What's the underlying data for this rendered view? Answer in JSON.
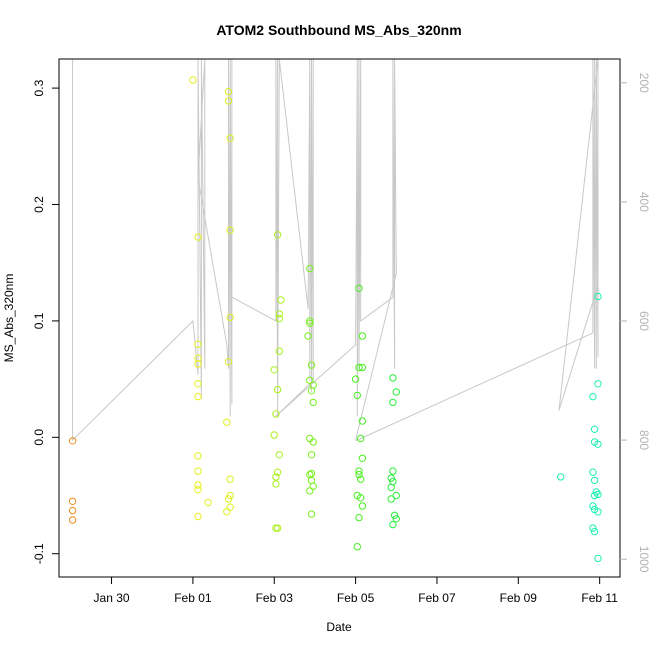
{
  "chart_data": {
    "type": "scatter",
    "title": "ATOM2 Southbound MS_Abs_320nm",
    "xlabel": "Date",
    "ylabel": "MS_Abs_320nm",
    "x_tick_labels": [
      "Jan 30",
      "Feb 01",
      "Feb 03",
      "Feb 05",
      "Feb 07",
      "Feb 09",
      "Feb 11"
    ],
    "x_tick_dates": [
      "2016-01-30",
      "2016-02-01",
      "2016-02-03",
      "2016-02-05",
      "2016-02-07",
      "2016-02-09",
      "2016-02-11"
    ],
    "xlim": [
      "2016-01-28 17:00",
      "2016-02-11 12:00"
    ],
    "ylim": [
      -0.12,
      0.325
    ],
    "y_ticks": [
      -0.1,
      0.0,
      0.1,
      0.2,
      0.3
    ],
    "y_tick_labels": [
      "-0.1",
      "0.0",
      "0.1",
      "0.2",
      "0.3"
    ],
    "y2_ticks": [
      200,
      400,
      600,
      800,
      1000
    ],
    "y2_tick_labels": [
      "200",
      "400",
      "600",
      "800",
      "1000"
    ],
    "y2lim": [
      1030,
      160
    ],
    "grid": false,
    "colors": {
      "points": "color gradient orange to green to cyan by date",
      "depth_line": "#c8c8c8"
    },
    "points": [
      [
        "2016-01-29 01:00",
        -0.003,
        "#f08c1e"
      ],
      [
        "2016-01-29 01:00",
        -0.055,
        "#f08c1e"
      ],
      [
        "2016-01-29 01:00",
        -0.063,
        "#f08c1e"
      ],
      [
        "2016-01-29 01:00",
        -0.071,
        "#f08c1e"
      ],
      [
        "2016-02-01 00:00",
        0.307,
        "#e6f01e"
      ],
      [
        "2016-02-01 03:00",
        0.172,
        "#e6f01e"
      ],
      [
        "2016-02-01 03:00",
        0.08,
        "#e6f01e"
      ],
      [
        "2016-02-01 03:00",
        0.068,
        "#e6f01e"
      ],
      [
        "2016-02-01 03:00",
        0.063,
        "#e6f01e"
      ],
      [
        "2016-02-01 03:00",
        0.046,
        "#e6f01e"
      ],
      [
        "2016-02-01 03:00",
        0.035,
        "#e6f01e"
      ],
      [
        "2016-02-01 03:00",
        -0.016,
        "#e6f01e"
      ],
      [
        "2016-02-01 03:00",
        -0.029,
        "#e6f01e"
      ],
      [
        "2016-02-01 03:00",
        -0.041,
        "#e6f01e"
      ],
      [
        "2016-02-01 03:00",
        -0.045,
        "#e6f01e"
      ],
      [
        "2016-02-01 03:00",
        -0.068,
        "#e6f01e"
      ],
      [
        "2016-02-01 09:00",
        -0.056,
        "#e6f01e"
      ],
      [
        "2016-02-01 21:00",
        0.297,
        "#ddf01e"
      ],
      [
        "2016-02-01 21:00",
        0.289,
        "#ddf01e"
      ],
      [
        "2016-02-01 22:00",
        0.257,
        "#ddf01e"
      ],
      [
        "2016-02-01 22:00",
        0.178,
        "#ddf01e"
      ],
      [
        "2016-02-01 22:00",
        0.103,
        "#ddf01e"
      ],
      [
        "2016-02-01 21:00",
        0.065,
        "#ddf01e"
      ],
      [
        "2016-02-01 20:00",
        0.013,
        "#ddf01e"
      ],
      [
        "2016-02-01 22:00",
        -0.036,
        "#ddf01e"
      ],
      [
        "2016-02-01 22:00",
        -0.05,
        "#ddf01e"
      ],
      [
        "2016-02-01 21:00",
        -0.053,
        "#ddf01e"
      ],
      [
        "2016-02-01 22:00",
        -0.06,
        "#ddf01e"
      ],
      [
        "2016-02-01 20:00",
        -0.064,
        "#ddf01e"
      ],
      [
        "2016-02-03 02:00",
        0.174,
        "#aaf01e"
      ],
      [
        "2016-02-03 04:00",
        0.118,
        "#aaf01e"
      ],
      [
        "2016-02-03 03:00",
        0.106,
        "#aaf01e"
      ],
      [
        "2016-02-03 03:00",
        0.102,
        "#aaf01e"
      ],
      [
        "2016-02-03 03:00",
        0.074,
        "#aaf01e"
      ],
      [
        "2016-02-03 00:00",
        0.058,
        "#aaf01e"
      ],
      [
        "2016-02-03 02:00",
        0.041,
        "#aaf01e"
      ],
      [
        "2016-02-03 01:00",
        0.02,
        "#aaf01e"
      ],
      [
        "2016-02-03 00:00",
        0.002,
        "#aaf01e"
      ],
      [
        "2016-02-03 03:00",
        -0.015,
        "#aaf01e"
      ],
      [
        "2016-02-03 02:00",
        -0.03,
        "#aaf01e"
      ],
      [
        "2016-02-03 01:00",
        -0.034,
        "#aaf01e"
      ],
      [
        "2016-02-03 01:00",
        -0.04,
        "#aaf01e"
      ],
      [
        "2016-02-03 01:00",
        -0.078,
        "#aaf01e"
      ],
      [
        "2016-02-03 02:00",
        -0.078,
        "#aaf01e"
      ],
      [
        "2016-02-03 21:00",
        0.145,
        "#7af01e"
      ],
      [
        "2016-02-03 21:00",
        0.1,
        "#7af01e"
      ],
      [
        "2016-02-03 21:00",
        0.098,
        "#7af01e"
      ],
      [
        "2016-02-03 20:00",
        0.087,
        "#7af01e"
      ],
      [
        "2016-02-03 22:00",
        0.062,
        "#7af01e"
      ],
      [
        "2016-02-03 21:00",
        0.049,
        "#7af01e"
      ],
      [
        "2016-02-03 23:00",
        0.045,
        "#7af01e"
      ],
      [
        "2016-02-03 22:00",
        0.04,
        "#7af01e"
      ],
      [
        "2016-02-03 23:00",
        0.03,
        "#7af01e"
      ],
      [
        "2016-02-03 21:00",
        -0.001,
        "#7af01e"
      ],
      [
        "2016-02-03 23:00",
        -0.004,
        "#7af01e"
      ],
      [
        "2016-02-03 22:00",
        -0.015,
        "#7af01e"
      ],
      [
        "2016-02-03 21:00",
        -0.032,
        "#7af01e"
      ],
      [
        "2016-02-03 22:00",
        -0.031,
        "#7af01e"
      ],
      [
        "2016-02-03 22:00",
        -0.037,
        "#7af01e"
      ],
      [
        "2016-02-03 23:00",
        -0.042,
        "#7af01e"
      ],
      [
        "2016-02-03 21:00",
        -0.046,
        "#7af01e"
      ],
      [
        "2016-02-03 22:00",
        -0.066,
        "#7af01e"
      ],
      [
        "2016-02-05 02:00",
        0.128,
        "#48f01e"
      ],
      [
        "2016-02-05 04:00",
        0.087,
        "#48f01e"
      ],
      [
        "2016-02-05 02:00",
        0.06,
        "#48f01e"
      ],
      [
        "2016-02-05 04:00",
        0.06,
        "#48f01e"
      ],
      [
        "2016-02-05 00:00",
        0.05,
        "#48f01e"
      ],
      [
        "2016-02-05 01:00",
        0.036,
        "#48f01e"
      ],
      [
        "2016-02-05 04:00",
        0.014,
        "#48f01e"
      ],
      [
        "2016-02-05 03:00",
        -0.001,
        "#48f01e"
      ],
      [
        "2016-02-05 04:00",
        -0.018,
        "#48f01e"
      ],
      [
        "2016-02-05 02:00",
        -0.029,
        "#48f01e"
      ],
      [
        "2016-02-05 02:00",
        -0.032,
        "#48f01e"
      ],
      [
        "2016-02-05 03:00",
        -0.036,
        "#48f01e"
      ],
      [
        "2016-02-05 01:00",
        -0.05,
        "#48f01e"
      ],
      [
        "2016-02-05 03:00",
        -0.052,
        "#48f01e"
      ],
      [
        "2016-02-05 04:00",
        -0.059,
        "#48f01e"
      ],
      [
        "2016-02-05 02:00",
        -0.069,
        "#48f01e"
      ],
      [
        "2016-02-05 01:00",
        -0.094,
        "#48f01e"
      ],
      [
        "2016-02-05 22:00",
        0.051,
        "#2af03c"
      ],
      [
        "2016-02-06 00:00",
        0.039,
        "#2af03c"
      ],
      [
        "2016-02-05 22:00",
        0.03,
        "#2af03c"
      ],
      [
        "2016-02-05 22:00",
        -0.029,
        "#2af03c"
      ],
      [
        "2016-02-05 21:00",
        -0.035,
        "#2af03c"
      ],
      [
        "2016-02-05 22:00",
        -0.038,
        "#2af03c"
      ],
      [
        "2016-02-05 21:00",
        -0.043,
        "#2af03c"
      ],
      [
        "2016-02-06 00:00",
        -0.05,
        "#2af03c"
      ],
      [
        "2016-02-05 21:00",
        -0.053,
        "#2af03c"
      ],
      [
        "2016-02-05 23:00",
        -0.067,
        "#2af03c"
      ],
      [
        "2016-02-06 00:00",
        -0.07,
        "#2af03c"
      ],
      [
        "2016-02-05 22:00",
        -0.075,
        "#2af03c"
      ],
      [
        "2016-02-10 01:00",
        -0.034,
        "#1ef0a0"
      ],
      [
        "2016-02-10 23:00",
        0.121,
        "#1ef0b4"
      ],
      [
        "2016-02-10 23:00",
        0.046,
        "#1ef0b4"
      ],
      [
        "2016-02-10 20:00",
        0.035,
        "#1ef0b4"
      ],
      [
        "2016-02-10 21:00",
        0.007,
        "#1ef0b4"
      ],
      [
        "2016-02-10 21:00",
        -0.004,
        "#1ef0b4"
      ],
      [
        "2016-02-10 23:00",
        -0.006,
        "#1ef0b4"
      ],
      [
        "2016-02-10 20:00",
        -0.03,
        "#1ef0b4"
      ],
      [
        "2016-02-10 21:00",
        -0.037,
        "#1ef0b4"
      ],
      [
        "2016-02-10 22:00",
        -0.047,
        "#1ef0b4"
      ],
      [
        "2016-02-10 23:00",
        -0.049,
        "#1ef0b4"
      ],
      [
        "2016-02-10 21:00",
        -0.05,
        "#1ef0b4"
      ],
      [
        "2016-02-10 20:00",
        -0.059,
        "#1ef0b4"
      ],
      [
        "2016-02-10 21:00",
        -0.062,
        "#1ef0b4"
      ],
      [
        "2016-02-10 23:00",
        -0.064,
        "#1ef0b4"
      ],
      [
        "2016-02-10 20:00",
        -0.078,
        "#1ef0b4"
      ],
      [
        "2016-02-10 21:00",
        -0.081,
        "#1ef0b4"
      ],
      [
        "2016-02-10 23:00",
        -0.104,
        "#1ef0b4"
      ]
    ],
    "depth_series": {
      "axis": "right",
      "color": "#c8c8c8",
      "points": [
        [
          "2016-01-29 01:00",
          160
        ],
        [
          "2016-01-29 01:00",
          800
        ],
        [
          "2016-02-01 00:00",
          600
        ],
        [
          "2016-02-01 03:00",
          690
        ],
        [
          "2016-02-01 03:00",
          160
        ],
        [
          "2016-02-01 05:00",
          730
        ],
        [
          "2016-02-01 05:00",
          160
        ],
        [
          "2016-02-01 07:00",
          680
        ],
        [
          "2016-02-01 07:00",
          160
        ],
        [
          "2016-02-01 03:00",
          360
        ],
        [
          "2016-02-01 20:00",
          640
        ],
        [
          "2016-02-01 21:00",
          680
        ],
        [
          "2016-02-01 21:00",
          160
        ],
        [
          "2016-02-01 22:00",
          760
        ],
        [
          "2016-02-01 22:00",
          160
        ],
        [
          "2016-02-01 23:00",
          740
        ],
        [
          "2016-02-01 23:00",
          160
        ],
        [
          "2016-02-01 23:00",
          560
        ],
        [
          "2016-02-03 01:00",
          600
        ],
        [
          "2016-02-03 01:00",
          160
        ],
        [
          "2016-02-03 02:00",
          720
        ],
        [
          "2016-02-03 02:00",
          160
        ],
        [
          "2016-02-03 02:00",
          760
        ],
        [
          "2016-02-03 03:00",
          160
        ],
        [
          "2016-02-03 20:00",
          580
        ],
        [
          "2016-02-03 21:00",
          160
        ],
        [
          "2016-02-03 21:00",
          700
        ],
        [
          "2016-02-03 22:00",
          160
        ],
        [
          "2016-02-03 22:00",
          720
        ],
        [
          "2016-02-03 23:00",
          160
        ],
        [
          "2016-02-03 23:00",
          700
        ],
        [
          "2016-02-03 01:00",
          760
        ],
        [
          "2016-02-05 00:00",
          640
        ],
        [
          "2016-02-05 01:00",
          160
        ],
        [
          "2016-02-05 01:00",
          760
        ],
        [
          "2016-02-05 02:00",
          160
        ],
        [
          "2016-02-05 02:00",
          680
        ],
        [
          "2016-02-05 03:00",
          160
        ],
        [
          "2016-02-05 03:00",
          600
        ],
        [
          "2016-02-05 22:00",
          560
        ],
        [
          "2016-02-05 22:00",
          160
        ],
        [
          "2016-02-05 23:00",
          680
        ],
        [
          "2016-02-05 23:00",
          160
        ],
        [
          "2016-02-06 00:00",
          520
        ],
        [
          "2016-02-05 00:00",
          800
        ],
        [
          "2016-02-05 01:00",
          800
        ],
        [
          "2016-02-10 20:00",
          620
        ],
        [
          "2016-02-10 20:00",
          160
        ],
        [
          "2016-02-10 21:00",
          680
        ],
        [
          "2016-02-10 21:00",
          160
        ],
        [
          "2016-02-10 22:00",
          680
        ],
        [
          "2016-02-10 22:00",
          160
        ],
        [
          "2016-02-10 23:00",
          660
        ],
        [
          "2016-02-10 23:00",
          160
        ],
        [
          "2016-02-10 00:00",
          750
        ],
        [
          "2016-02-10 23:00",
          540
        ]
      ]
    }
  }
}
